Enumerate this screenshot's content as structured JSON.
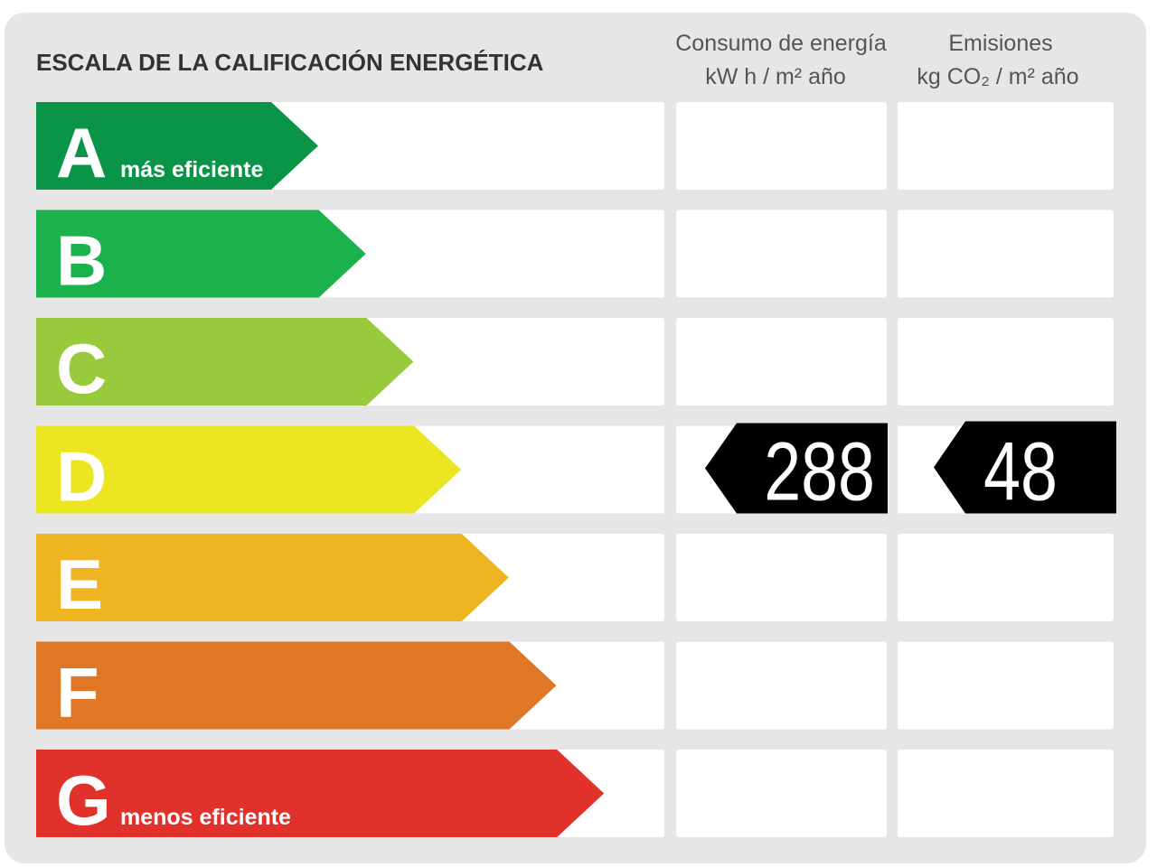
{
  "header": {
    "title": "ESCALA DE LA CALIFICACIÓN ENERGÉTICA",
    "consumption": [
      "Consumo de energía",
      "kW h  / m² año"
    ],
    "emissions": [
      "Emisiones",
      "kg CO₂  / m² año"
    ]
  },
  "scale": [
    {
      "letter": "A",
      "note": "más eficiente",
      "color": "#0a9447"
    },
    {
      "letter": "B",
      "color": "#1bb14c"
    },
    {
      "letter": "C",
      "color": "#99c93c"
    },
    {
      "letter": "D",
      "color": "#ece521",
      "consumption": 288,
      "emissions": 48
    },
    {
      "letter": "E",
      "color": "#efb421"
    },
    {
      "letter": "F",
      "color": "#e07727"
    },
    {
      "letter": "G",
      "note": "menos eficiente",
      "color": "#e0312a"
    }
  ]
}
